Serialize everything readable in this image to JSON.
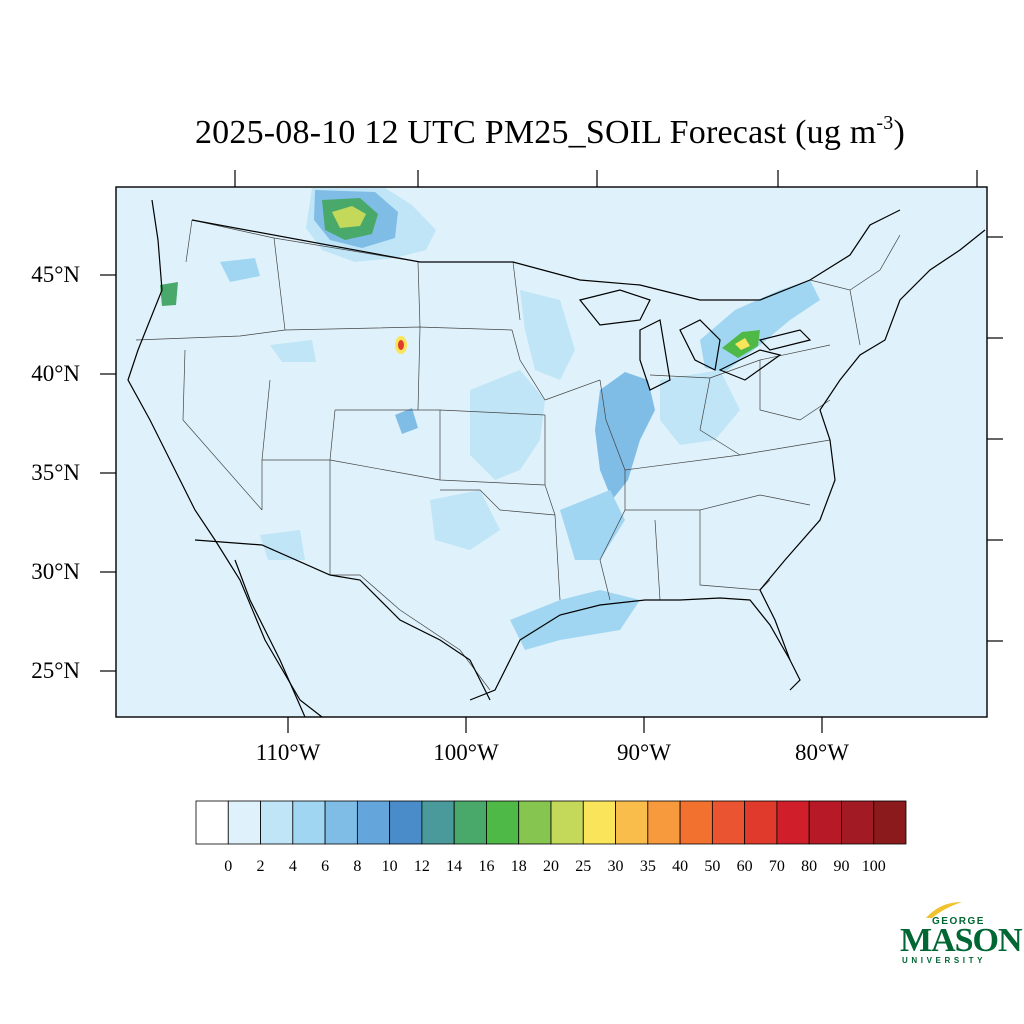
{
  "title": {
    "text": "2025-08-10 12 UTC PM25_SOIL Forecast (ug m",
    "superscript": "-3",
    "suffix": ")"
  },
  "map": {
    "lat_labels": [
      "45°N",
      "40°N",
      "35°N",
      "30°N",
      "25°N"
    ],
    "lon_labels": [
      "110°W",
      "100°W",
      "90°W",
      "80°W"
    ],
    "background_color": "#dff2fb",
    "land_outline_color": "#000000"
  },
  "colorbar": {
    "labels": [
      "0",
      "2",
      "4",
      "6",
      "8",
      "10",
      "12",
      "14",
      "16",
      "18",
      "20",
      "25",
      "30",
      "35",
      "40",
      "50",
      "60",
      "70",
      "80",
      "90",
      "100"
    ],
    "colors": [
      "#ffffff",
      "#dff2fb",
      "#bfe5f7",
      "#a0d6f2",
      "#80bde6",
      "#64a6db",
      "#4a8bc9",
      "#4a9a9c",
      "#48a96b",
      "#4fb948",
      "#87c551",
      "#c4d95a",
      "#f9e45a",
      "#f8bd4a",
      "#f69a3d",
      "#f2712f",
      "#ea5430",
      "#df3a2c",
      "#d01f2b",
      "#b71a26",
      "#a11a24",
      "#8b1a1d"
    ]
  },
  "logo": {
    "line1": "GEORGE",
    "line2": "MASON",
    "line3": "UNIVERSITY",
    "color": "#006633",
    "accent": "#f2c12e"
  }
}
